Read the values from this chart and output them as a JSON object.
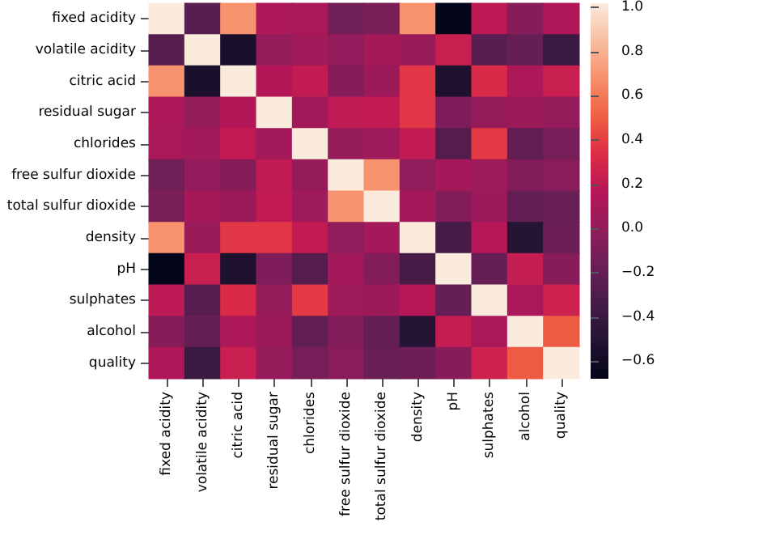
{
  "chart_data": {
    "type": "heatmap",
    "categories": [
      "fixed acidity",
      "volatile acidity",
      "citric acid",
      "residual sugar",
      "chlorides",
      "free sulfur dioxide",
      "total sulfur dioxide",
      "density",
      "pH",
      "sulphates",
      "alcohol",
      "quality"
    ],
    "y_categories": [
      "fixed acidity",
      "volatile acidity",
      "citric acid",
      "residual sugar",
      "chlorides",
      "free sulfur dioxide",
      "total sulfur dioxide",
      "density",
      "pH",
      "sulphates",
      "alcohol",
      "quality"
    ],
    "cells": [
      [
        1,
        -0.26,
        0.67,
        0.11,
        0.09,
        -0.15,
        -0.11,
        0.67,
        -0.68,
        0.18,
        -0.06,
        0.12
      ],
      [
        -0.26,
        1,
        -0.55,
        0,
        0.06,
        -0.01,
        0.08,
        0.02,
        0.23,
        -0.26,
        -0.2,
        -0.39
      ],
      [
        0.67,
        -0.55,
        1,
        0.14,
        0.2,
        -0.06,
        0.04,
        0.36,
        -0.54,
        0.31,
        0.11,
        0.23
      ],
      [
        0.11,
        0,
        0.14,
        1,
        0.06,
        0.19,
        0.2,
        0.36,
        -0.09,
        0.01,
        0.04,
        0.01
      ],
      [
        0.09,
        0.06,
        0.2,
        0.06,
        1,
        0.01,
        0.05,
        0.2,
        -0.27,
        0.37,
        -0.22,
        -0.13
      ],
      [
        -0.15,
        -0.01,
        -0.06,
        0.19,
        0.01,
        1,
        0.67,
        -0.02,
        0.07,
        0.05,
        -0.07,
        -0.05
      ],
      [
        -0.11,
        0.08,
        0.04,
        0.2,
        0.05,
        0.67,
        1,
        0.07,
        -0.07,
        0.04,
        -0.21,
        -0.19
      ],
      [
        0.67,
        0.02,
        0.36,
        0.36,
        0.2,
        -0.02,
        0.07,
        1,
        -0.34,
        0.15,
        -0.5,
        -0.17
      ],
      [
        -0.68,
        0.23,
        -0.54,
        -0.09,
        -0.27,
        0.07,
        -0.07,
        -0.34,
        1,
        -0.2,
        0.21,
        -0.06
      ],
      [
        0.18,
        -0.26,
        0.31,
        0.01,
        0.37,
        0.05,
        0.04,
        0.15,
        -0.2,
        1,
        0.09,
        0.25
      ],
      [
        -0.06,
        -0.2,
        0.11,
        0.04,
        -0.22,
        -0.07,
        -0.21,
        -0.5,
        0.21,
        0.09,
        1,
        0.48
      ],
      [
        0.12,
        -0.39,
        0.23,
        0.01,
        -0.13,
        -0.05,
        -0.19,
        -0.17,
        -0.06,
        0.25,
        0.48,
        1
      ]
    ],
    "clim": [
      -0.68,
      1
    ],
    "cticks": [
      {
        "value": -0.6,
        "label": "−0.6"
      },
      {
        "value": -0.4,
        "label": "−0.4"
      },
      {
        "value": -0.2,
        "label": "−0.2"
      },
      {
        "value": 0,
        "label": "0.0"
      },
      0.2,
      0.4,
      0.6,
      0.8,
      {
        "value": 1,
        "label": "1.0"
      }
    ]
  }
}
